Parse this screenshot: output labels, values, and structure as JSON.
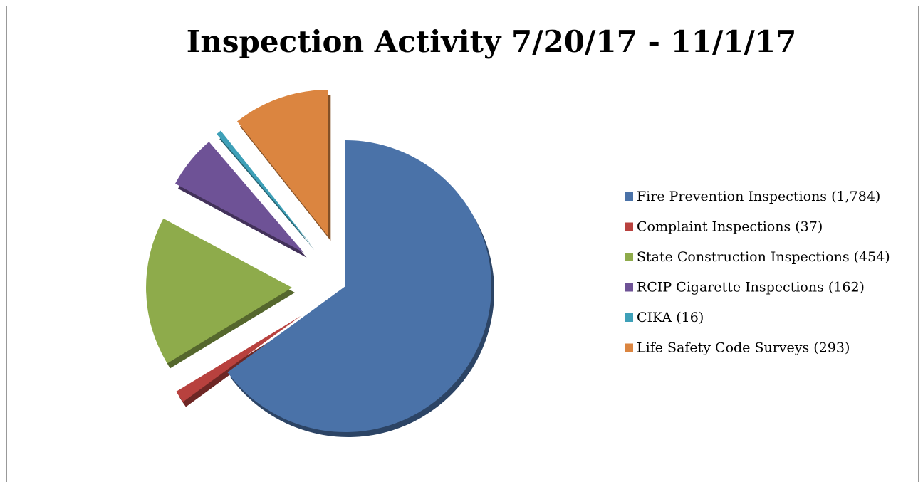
{
  "chart_data": {
    "type": "pie",
    "title": "Inspection Activity 7/20/17 - 11/1/17",
    "categories": [
      "Fire Prevention Inspections (1,784)",
      "Complaint Inspections (37)",
      "State Construction Inspections (454)",
      "RCIP Cigarette Inspections (162)",
      "CIKA (16)",
      "Life Safety Code Surveys (293)"
    ],
    "values": [
      1784,
      37,
      454,
      162,
      16,
      293
    ],
    "colors": [
      "#4a72a8",
      "#b8413e",
      "#8eab4b",
      "#6e5296",
      "#3ea0b8",
      "#db8540"
    ],
    "legend": "right"
  }
}
